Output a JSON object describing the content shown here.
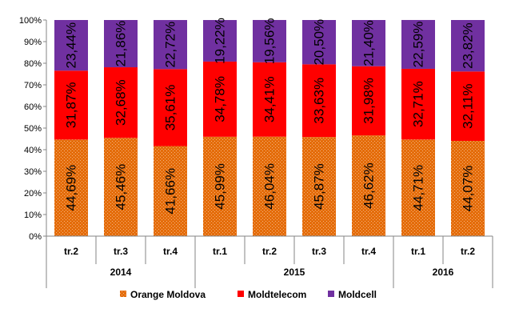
{
  "chart_data": {
    "type": "bar",
    "stacked": true,
    "percent": true,
    "categories": [
      "tr.2",
      "tr.3",
      "tr.4",
      "tr.1",
      "tr.2",
      "tr.3",
      "tr.4",
      "tr.1",
      "tr.2"
    ],
    "groups": [
      {
        "label": "2014",
        "span": 3
      },
      {
        "label": "2015",
        "span": 4
      },
      {
        "label": "2016",
        "span": 2
      }
    ],
    "series": [
      {
        "name": "Orange Moldova",
        "color": "#E46C0A",
        "pattern": "dotted",
        "values": [
          44.69,
          45.46,
          41.66,
          45.99,
          46.04,
          45.87,
          46.62,
          44.71,
          44.07
        ],
        "labels": [
          "44,69%",
          "45,46%",
          "41,66%",
          "45,99%",
          "46,04%",
          "45,87%",
          "46,62%",
          "44,71%",
          "44,07%"
        ]
      },
      {
        "name": "Moldtelecom",
        "color": "#FF0000",
        "values": [
          31.87,
          32.68,
          35.61,
          34.78,
          34.41,
          33.63,
          31.98,
          32.71,
          32.11
        ],
        "labels": [
          "31,87%",
          "32,68%",
          "35,61%",
          "34,78%",
          "34,41%",
          "33,63%",
          "31,98%",
          "32,71%",
          "32,11%"
        ]
      },
      {
        "name": "Moldcell",
        "color": "#7030A0",
        "values": [
          23.44,
          21.86,
          22.72,
          19.22,
          19.56,
          20.5,
          21.4,
          22.59,
          23.82
        ],
        "labels": [
          "23,44%",
          "21,86%",
          "22,72%",
          "19,22%",
          "19,56%",
          "20,50%",
          "21,40%",
          "22,59%",
          "23,82%"
        ]
      }
    ],
    "y_ticks": [
      "0%",
      "10%",
      "20%",
      "30%",
      "40%",
      "50%",
      "60%",
      "70%",
      "80%",
      "90%",
      "100%"
    ],
    "ylim": [
      0,
      100
    ],
    "grid": false,
    "legend_position": "bottom",
    "title": "",
    "xlabel": "",
    "ylabel": ""
  }
}
